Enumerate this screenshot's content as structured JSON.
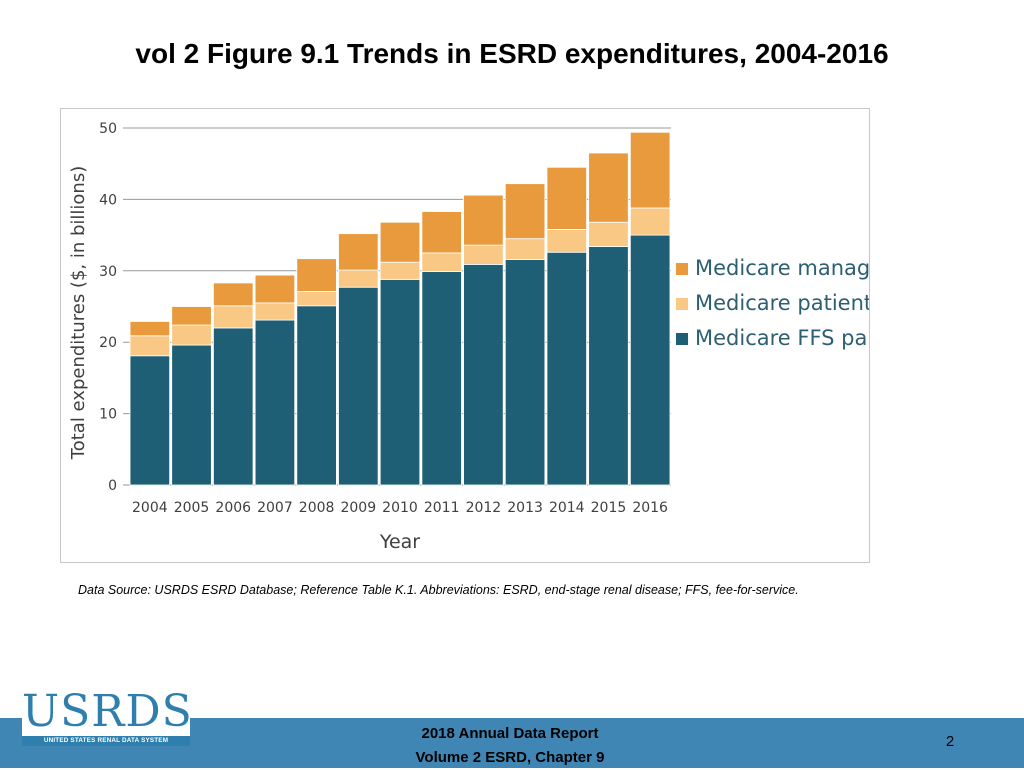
{
  "slide": {
    "title": "vol 2 Figure 9.1 Trends in ESRD expenditures, 2004-2016",
    "source_note": "Data Source: USRDS ESRD Database; Reference Table K.1. Abbreviations: ESRD, end-stage renal disease; FFS, fee-for-service.",
    "footer_line1": "2018 Annual Data Report",
    "footer_line2": "Volume 2 ESRD, Chapter 9",
    "page_number": "2",
    "logo_text": "USRDS",
    "logo_subtext": "UNITED STATES RENAL DATA SYSTEM",
    "footer_color": "#3f86b4"
  },
  "chart_data": {
    "type": "bar",
    "stacked": true,
    "title": "",
    "xlabel": "Year",
    "ylabel": "Total expenditures ($, in billions)",
    "ylim": [
      0,
      50
    ],
    "yticks": [
      0,
      10,
      20,
      30,
      40,
      50
    ],
    "grid": true,
    "legend_position": "right",
    "categories": [
      "2004",
      "2005",
      "2006",
      "2007",
      "2008",
      "2009",
      "2010",
      "2011",
      "2012",
      "2013",
      "2014",
      "2015",
      "2016"
    ],
    "series": [
      {
        "name": "Medicare FFS paid",
        "color": "#1f5f75",
        "values": [
          18.1,
          19.6,
          22.0,
          23.1,
          25.1,
          27.7,
          28.8,
          29.9,
          30.9,
          31.6,
          32.6,
          33.4,
          35.0
        ]
      },
      {
        "name": "Medicare patient obligation",
        "color": "#f9c884",
        "values": [
          2.8,
          2.8,
          3.1,
          2.4,
          2.0,
          2.4,
          2.4,
          2.6,
          2.7,
          2.9,
          3.2,
          3.4,
          3.8
        ]
      },
      {
        "name": "Medicare managed care",
        "color": "#e89a3c",
        "values": [
          2.0,
          2.6,
          3.2,
          3.9,
          4.6,
          5.1,
          5.6,
          5.8,
          7.0,
          7.7,
          8.7,
          9.7,
          10.6
        ]
      }
    ],
    "legend_order": [
      "Medicare managed care",
      "Medicare patient obligation",
      "Medicare FFS paid"
    ]
  }
}
